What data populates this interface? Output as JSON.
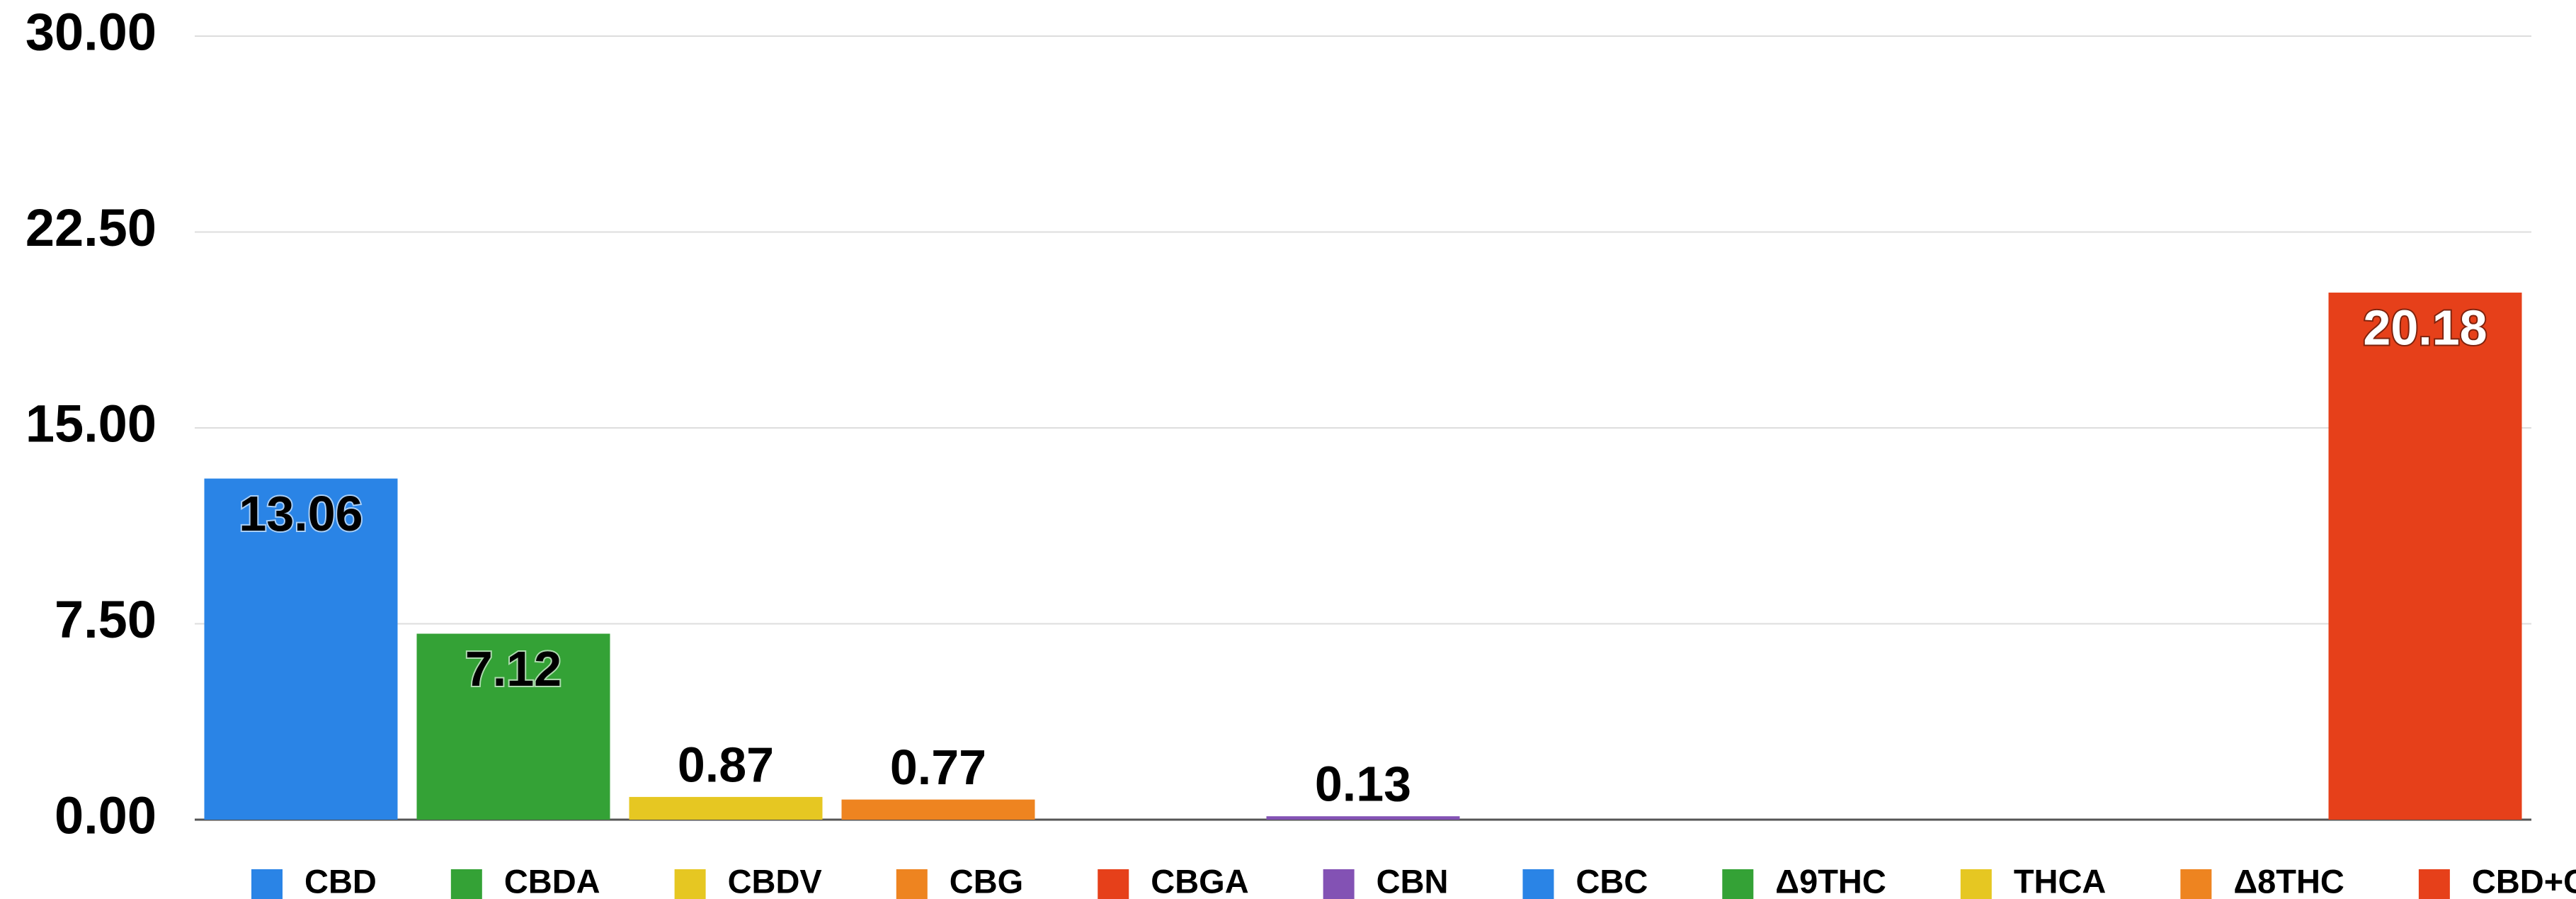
{
  "chart_data": {
    "type": "bar",
    "categories": [
      "CBD",
      "CBDA",
      "CBDV",
      "CBG",
      "CBGA",
      "CBN",
      "CBC",
      "Δ9THC",
      "THCA",
      "Δ8THC",
      "CBD+CBDA"
    ],
    "values": [
      13.06,
      7.12,
      0.87,
      0.77,
      0,
      0.13,
      0,
      0,
      0,
      0,
      20.18
    ],
    "value_labels": [
      "13.06",
      "7.12",
      "0.87",
      "0.77",
      null,
      "0.13",
      null,
      null,
      null,
      null,
      "20.18"
    ],
    "colors": [
      "#2a84e6",
      "#34a236",
      "#e6c722",
      "#ee8420",
      "#e6401a",
      "#8352b4",
      "#2a84e6",
      "#34a236",
      "#e6c722",
      "#ee8420",
      "#e6401a"
    ],
    "value_label_colors": [
      "#000000",
      "#000000",
      "#000000",
      "#000000",
      null,
      "#000000",
      null,
      null,
      null,
      null,
      "#ffffff"
    ],
    "ylim": [
      0,
      30
    ],
    "yticks": [
      {
        "value": 0,
        "label": "0.00"
      },
      {
        "value": 7.5,
        "label": "7.50"
      },
      {
        "value": 15,
        "label": "15.00"
      },
      {
        "value": 22.5,
        "label": "22.50"
      },
      {
        "value": 30,
        "label": "30.00"
      }
    ],
    "grid": true,
    "legend": "bottom"
  }
}
